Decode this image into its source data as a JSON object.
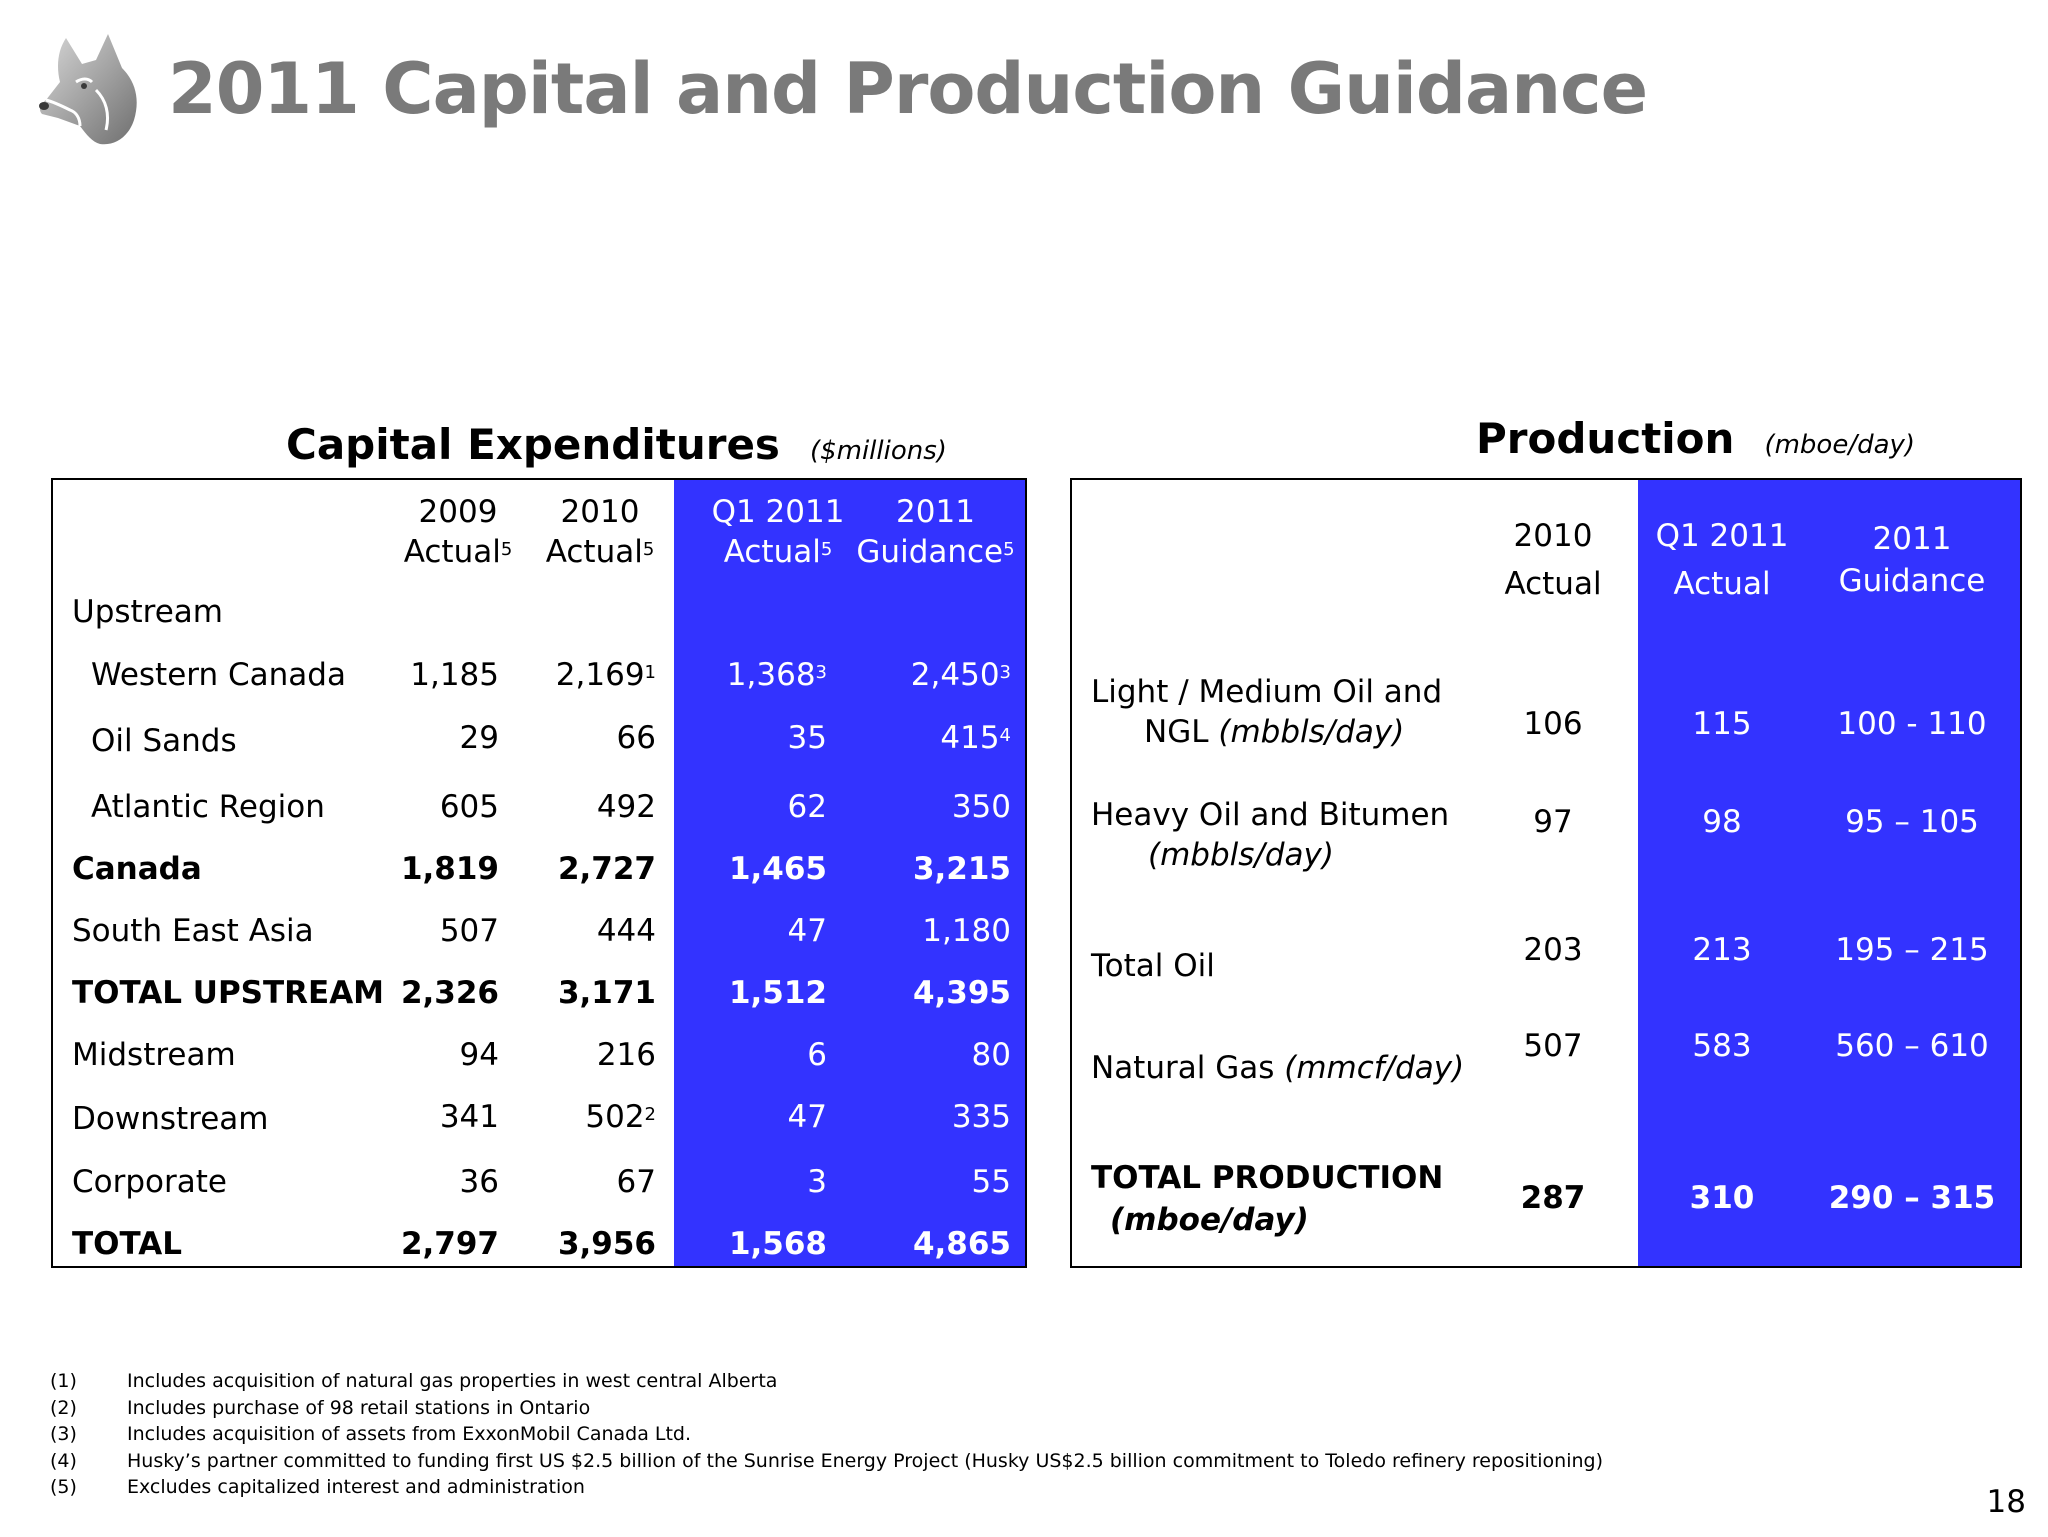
{
  "title": "2011 Capital and Production Guidance",
  "logo_icon": "husky-dog-head-logo",
  "capex": {
    "heading": "Capital Expenditures",
    "unit": "($millions)",
    "headers": [
      {
        "line1": "2009",
        "line2": "Actual",
        "sup": "5"
      },
      {
        "line1": "2010",
        "line2": "Actual",
        "sup": "5"
      },
      {
        "line1": "Q1 2011",
        "line2": "Actual",
        "sup": "5"
      },
      {
        "line1": "2011",
        "line2": "Guidance",
        "sup": "5"
      }
    ],
    "section_label": "Upstream",
    "rows": [
      {
        "label": "Western Canada",
        "v2009": "1,185",
        "v2010": "2,169",
        "v2010_sup": "1",
        "vq1": "1,368",
        "vq1_sup": "3",
        "v2011": "2,450",
        "v2011_sup": "3"
      },
      {
        "label": "Oil Sands",
        "v2009": "29",
        "v2010": "66",
        "v2010_sup": "",
        "vq1": "35",
        "vq1_sup": "",
        "v2011": "415",
        "v2011_sup": "4"
      },
      {
        "label": "Atlantic Region",
        "v2009": "605",
        "v2010": "492",
        "v2010_sup": "",
        "vq1": "62",
        "vq1_sup": "",
        "v2011": "350",
        "v2011_sup": ""
      },
      {
        "label": "Canada",
        "v2009": "1,819",
        "v2010": "2,727",
        "v2010_sup": "",
        "vq1": "1,465",
        "vq1_sup": "",
        "v2011": "3,215",
        "v2011_sup": ""
      },
      {
        "label": "South East Asia",
        "v2009": "507",
        "v2010": "444",
        "v2010_sup": "",
        "vq1": "47",
        "vq1_sup": "",
        "v2011": "1,180",
        "v2011_sup": ""
      },
      {
        "label": "TOTAL UPSTREAM",
        "v2009": "2,326",
        "v2010": "3,171",
        "v2010_sup": "",
        "vq1": "1,512",
        "vq1_sup": "",
        "v2011": "4,395",
        "v2011_sup": ""
      },
      {
        "label": "Midstream",
        "v2009": "94",
        "v2010": "216",
        "v2010_sup": "",
        "vq1": "6",
        "vq1_sup": "",
        "v2011": "80",
        "v2011_sup": ""
      },
      {
        "label": "Downstream",
        "v2009": "341",
        "v2010": "502",
        "v2010_sup": "2",
        "vq1": "47",
        "vq1_sup": "",
        "v2011": "335",
        "v2011_sup": ""
      },
      {
        "label": "Corporate",
        "v2009": "36",
        "v2010": "67",
        "v2010_sup": "",
        "vq1": "3",
        "vq1_sup": "",
        "v2011": "55",
        "v2011_sup": ""
      },
      {
        "label": "TOTAL",
        "v2009": "2,797",
        "v2010": "3,956",
        "v2010_sup": "",
        "vq1": "1,568",
        "vq1_sup": "",
        "v2011": "4,865",
        "v2011_sup": ""
      }
    ]
  },
  "production": {
    "heading": "Production",
    "unit": "(mboe/day)",
    "headers": [
      {
        "line1": "2010",
        "line2": "Actual"
      },
      {
        "line1": "Q1 2011",
        "line2": "Actual"
      },
      {
        "line1": "2011",
        "line2": "Guidance"
      }
    ],
    "rows": [
      {
        "label1": "Light / Medium Oil and",
        "label2": "NGL",
        "label2_unit": "(mbbls/day)",
        "v2010": "106",
        "vq1": "115",
        "v2011": "100 - 110"
      },
      {
        "label1": "Heavy Oil and Bitumen",
        "label2": "",
        "label2_unit": "(mbbls/day)",
        "v2010": "97",
        "vq1": "98",
        "v2011": "95 – 105"
      },
      {
        "label1": "Total Oil",
        "label2": "",
        "label2_unit": "",
        "v2010": "203",
        "vq1": "213",
        "v2011": "195 – 215"
      },
      {
        "label1": "Natural Gas",
        "label2": "",
        "label2_unit": "(mmcf/day)",
        "v2010": "507",
        "vq1": "583",
        "v2011": "560 – 610"
      },
      {
        "label1": "TOTAL PRODUCTION",
        "label2": "",
        "label2_unit": "(mboe/day)",
        "v2010": "287",
        "vq1": "310",
        "v2011": "290 – 315"
      }
    ]
  },
  "footnotes": [
    {
      "num": "(1)",
      "text": "Includes acquisition of natural gas properties in west central Alberta"
    },
    {
      "num": "(2)",
      "text": "Includes purchase of 98 retail stations in Ontario"
    },
    {
      "num": "(3)",
      "text": "Includes  acquisition of assets from ExxonMobil Canada Ltd."
    },
    {
      "num": "(4)",
      "text": "Husky’s partner committed to funding first US $2.5 billion of the Sunrise Energy Project (Husky US$2.5 billion commitment to Toledo refinery repositioning)"
    },
    {
      "num": "(5)",
      "text": "Excludes capitalized interest and administration"
    }
  ],
  "page_number": "18",
  "colors": {
    "highlight": "#3333ff",
    "title": "#7a7a7a"
  }
}
